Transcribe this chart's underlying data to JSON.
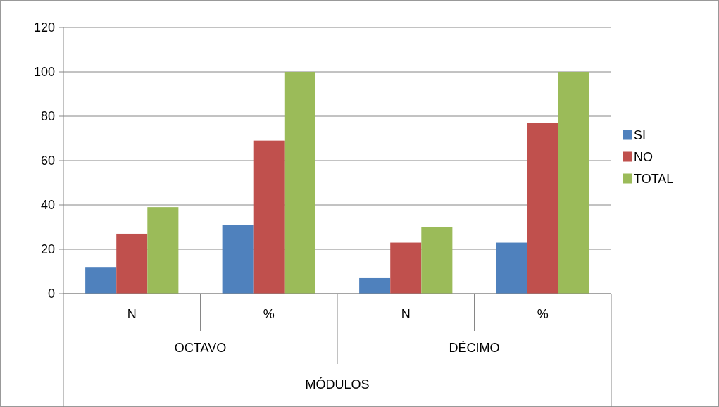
{
  "chart_data": {
    "type": "bar",
    "categories": [
      "N",
      "%",
      "N",
      "%"
    ],
    "series": [
      {
        "name": "SI",
        "color": "#4f81bd",
        "values": [
          12,
          31,
          7,
          23
        ]
      },
      {
        "name": "NO",
        "color": "#c0504d",
        "values": [
          27,
          69,
          23,
          77
        ]
      },
      {
        "name": "TOTAL",
        "color": "#9bbb59",
        "values": [
          39,
          100,
          30,
          100
        ]
      }
    ],
    "xlabel": "MÓDULOS",
    "annotations": [
      "OCTAVO",
      "DÉCIMO"
    ],
    "ylim": [
      0,
      120
    ],
    "yticks": [
      0,
      20,
      40,
      60,
      80,
      100,
      120
    ],
    "grid": "y",
    "legend": "right"
  }
}
